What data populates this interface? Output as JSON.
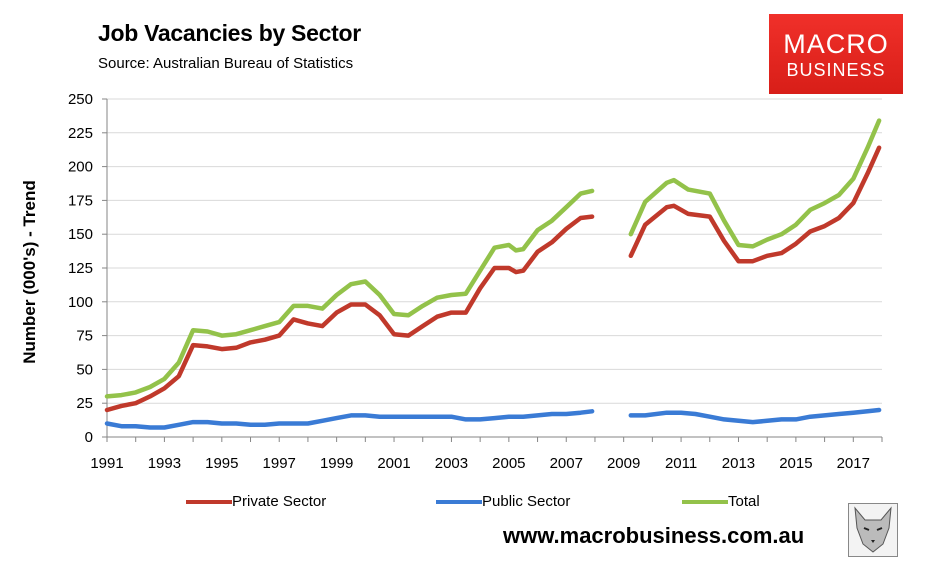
{
  "chart_data": {
    "type": "line",
    "title": "Job Vacancies by Sector",
    "subtitle": "Source: Australian Bureau of Statistics",
    "xlabel": "",
    "ylabel": "Number (000's) - Trend",
    "xlim": [
      1991,
      2018
    ],
    "ylim": [
      0,
      250
    ],
    "yticks": [
      0,
      25,
      50,
      75,
      100,
      125,
      150,
      175,
      200,
      225,
      250
    ],
    "xticks": [
      1991,
      1993,
      1995,
      1997,
      1999,
      2001,
      2003,
      2005,
      2007,
      2009,
      2011,
      2013,
      2015,
      2017
    ],
    "grid": true,
    "series": [
      {
        "name": "Private Sector",
        "color": "#c0392b",
        "points": [
          [
            1991,
            20
          ],
          [
            1991.5,
            23
          ],
          [
            1992,
            25
          ],
          [
            1992.5,
            30
          ],
          [
            1993,
            36
          ],
          [
            1993.5,
            45
          ],
          [
            1994,
            68
          ],
          [
            1994.5,
            67
          ],
          [
            1995,
            65
          ],
          [
            1995.5,
            66
          ],
          [
            1996,
            70
          ],
          [
            1996.5,
            72
          ],
          [
            1997,
            75
          ],
          [
            1997.5,
            87
          ],
          [
            1998,
            84
          ],
          [
            1998.5,
            82
          ],
          [
            1999,
            92
          ],
          [
            1999.5,
            98
          ],
          [
            2000,
            98
          ],
          [
            2000.5,
            90
          ],
          [
            2001,
            76
          ],
          [
            2001.5,
            75
          ],
          [
            2002,
            82
          ],
          [
            2002.5,
            89
          ],
          [
            2003,
            92
          ],
          [
            2003.5,
            92
          ],
          [
            2004,
            110
          ],
          [
            2004.5,
            125
          ],
          [
            2005,
            125
          ],
          [
            2005.25,
            122
          ],
          [
            2005.5,
            123
          ],
          [
            2006,
            137
          ],
          [
            2006.5,
            144
          ],
          [
            2007,
            154
          ],
          [
            2007.5,
            162
          ],
          [
            2007.9,
            163
          ],
          null,
          [
            2009.25,
            134
          ],
          [
            2009.75,
            157
          ],
          [
            2010.5,
            170
          ],
          [
            2010.75,
            171
          ],
          [
            2011.25,
            165
          ],
          [
            2012,
            163
          ],
          [
            2012.5,
            145
          ],
          [
            2013,
            130
          ],
          [
            2013.5,
            130
          ],
          [
            2014,
            134
          ],
          [
            2014.5,
            136
          ],
          [
            2015,
            143
          ],
          [
            2015.5,
            152
          ],
          [
            2016,
            156
          ],
          [
            2016.5,
            162
          ],
          [
            2017,
            173
          ],
          [
            2017.5,
            195
          ],
          [
            2017.9,
            214
          ]
        ]
      },
      {
        "name": "Public Sector",
        "color": "#3a7bd5",
        "points": [
          [
            1991,
            10
          ],
          [
            1991.5,
            8
          ],
          [
            1992,
            8
          ],
          [
            1992.5,
            7
          ],
          [
            1993,
            7
          ],
          [
            1993.5,
            9
          ],
          [
            1994,
            11
          ],
          [
            1994.5,
            11
          ],
          [
            1995,
            10
          ],
          [
            1995.5,
            10
          ],
          [
            1996,
            9
          ],
          [
            1996.5,
            9
          ],
          [
            1997,
            10
          ],
          [
            1997.5,
            10
          ],
          [
            1998,
            10
          ],
          [
            1998.5,
            12
          ],
          [
            1999,
            14
          ],
          [
            1999.5,
            16
          ],
          [
            2000,
            16
          ],
          [
            2000.5,
            15
          ],
          [
            2001,
            15
          ],
          [
            2001.5,
            15
          ],
          [
            2002,
            15
          ],
          [
            2002.5,
            15
          ],
          [
            2003,
            15
          ],
          [
            2003.5,
            13
          ],
          [
            2004,
            13
          ],
          [
            2004.5,
            14
          ],
          [
            2005,
            15
          ],
          [
            2005.5,
            15
          ],
          [
            2006,
            16
          ],
          [
            2006.5,
            17
          ],
          [
            2007,
            17
          ],
          [
            2007.5,
            18
          ],
          [
            2007.9,
            19
          ],
          null,
          [
            2009.25,
            16
          ],
          [
            2009.75,
            16
          ],
          [
            2010.5,
            18
          ],
          [
            2011,
            18
          ],
          [
            2011.5,
            17
          ],
          [
            2012,
            15
          ],
          [
            2012.5,
            13
          ],
          [
            2013,
            12
          ],
          [
            2013.5,
            11
          ],
          [
            2014,
            12
          ],
          [
            2014.5,
            13
          ],
          [
            2015,
            13
          ],
          [
            2015.5,
            15
          ],
          [
            2016,
            16
          ],
          [
            2016.5,
            17
          ],
          [
            2017,
            18
          ],
          [
            2017.5,
            19
          ],
          [
            2017.9,
            20
          ]
        ]
      },
      {
        "name": "Total",
        "color": "#93c24a",
        "points": [
          [
            1991,
            30
          ],
          [
            1991.5,
            31
          ],
          [
            1992,
            33
          ],
          [
            1992.5,
            37
          ],
          [
            1993,
            43
          ],
          [
            1993.5,
            55
          ],
          [
            1994,
            79
          ],
          [
            1994.5,
            78
          ],
          [
            1995,
            75
          ],
          [
            1995.5,
            76
          ],
          [
            1996,
            79
          ],
          [
            1996.5,
            82
          ],
          [
            1997,
            85
          ],
          [
            1997.5,
            97
          ],
          [
            1998,
            97
          ],
          [
            1998.5,
            95
          ],
          [
            1999,
            105
          ],
          [
            1999.5,
            113
          ],
          [
            2000,
            115
          ],
          [
            2000.5,
            105
          ],
          [
            2001,
            91
          ],
          [
            2001.5,
            90
          ],
          [
            2002,
            97
          ],
          [
            2002.5,
            103
          ],
          [
            2003,
            105
          ],
          [
            2003.5,
            106
          ],
          [
            2004,
            123
          ],
          [
            2004.5,
            140
          ],
          [
            2005,
            142
          ],
          [
            2005.25,
            138
          ],
          [
            2005.5,
            139
          ],
          [
            2006,
            153
          ],
          [
            2006.5,
            160
          ],
          [
            2007,
            170
          ],
          [
            2007.5,
            180
          ],
          [
            2007.9,
            182
          ],
          null,
          [
            2009.25,
            150
          ],
          [
            2009.75,
            174
          ],
          [
            2010.5,
            188
          ],
          [
            2010.75,
            190
          ],
          [
            2011.25,
            183
          ],
          [
            2012,
            180
          ],
          [
            2012.5,
            160
          ],
          [
            2013,
            142
          ],
          [
            2013.5,
            141
          ],
          [
            2014,
            146
          ],
          [
            2014.5,
            150
          ],
          [
            2015,
            157
          ],
          [
            2015.5,
            168
          ],
          [
            2016,
            173
          ],
          [
            2016.5,
            179
          ],
          [
            2017,
            191
          ],
          [
            2017.5,
            214
          ],
          [
            2017.9,
            234
          ]
        ]
      }
    ]
  },
  "logo": {
    "line1": "MACRO",
    "line2": "BUSINESS"
  },
  "footer": {
    "url": "www.macrobusiness.com.au"
  }
}
